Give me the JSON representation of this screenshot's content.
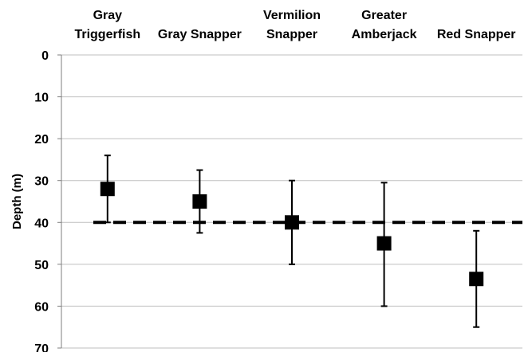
{
  "chart_data": {
    "type": "scatter",
    "title": "",
    "xlabel": "",
    "ylabel": "Depth (m)",
    "ylim": [
      0,
      70
    ],
    "y_reversed": true,
    "y_ticks": [
      "0",
      "10",
      "20",
      "30",
      "40",
      "50",
      "60",
      "70"
    ],
    "grid": true,
    "categories": [
      {
        "line1": "Gray",
        "line2": "Triggerfish"
      },
      {
        "line1": "",
        "line2": "Gray Snapper"
      },
      {
        "line1": "Vermilion",
        "line2": "Snapper"
      },
      {
        "line1": "Greater",
        "line2": "Amberjack"
      },
      {
        "line1": "",
        "line2": "Red Snapper"
      }
    ],
    "points": [
      {
        "y": 32,
        "err_low": 24,
        "err_high": 40
      },
      {
        "y": 35,
        "err_low": 27.5,
        "err_high": 42.5
      },
      {
        "y": 40,
        "err_low": 30,
        "err_high": 50
      },
      {
        "y": 45,
        "err_low": 30.5,
        "err_high": 60
      },
      {
        "y": 53.5,
        "err_low": 42,
        "err_high": 65
      }
    ],
    "reference_line": {
      "y": 40,
      "style": "dashed"
    },
    "colors": {
      "marker": "#000000",
      "grid": "#bfbfbf",
      "axis": "#7f7f7f"
    }
  }
}
